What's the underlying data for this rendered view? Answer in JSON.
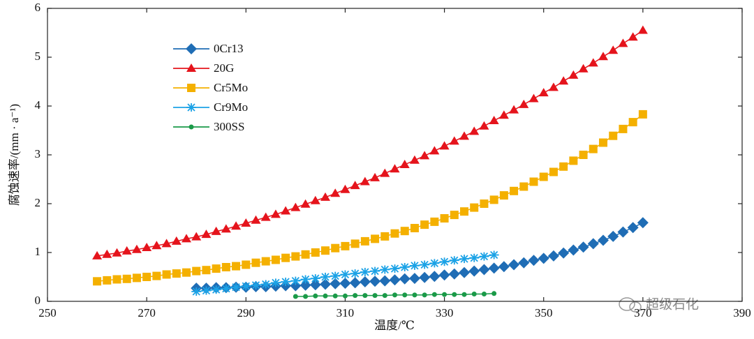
{
  "chart_data": {
    "type": "line",
    "xlabel": "温度/℃",
    "ylabel": "腐蚀速率/(mm · a⁻¹)",
    "watermark": "超级石化",
    "xlim": [
      250,
      390
    ],
    "xticks": [
      250,
      270,
      290,
      310,
      330,
      350,
      370,
      390
    ],
    "ylim": [
      0,
      6
    ],
    "yticks": [
      0,
      1,
      2,
      3,
      4,
      5,
      6
    ],
    "legend": "upper-left",
    "series": [
      {
        "name": "0Cr13",
        "color": "#1f6db5",
        "marker": "diamond",
        "x": [
          280,
          282,
          284,
          286,
          288,
          290,
          292,
          294,
          296,
          298,
          300,
          302,
          304,
          306,
          308,
          310,
          312,
          314,
          316,
          318,
          320,
          322,
          324,
          326,
          328,
          330,
          332,
          334,
          336,
          338,
          340,
          342,
          344,
          346,
          348,
          350,
          352,
          354,
          356,
          358,
          360,
          362,
          364,
          366,
          368,
          370
        ],
        "values": [
          0.27,
          0.27,
          0.28,
          0.28,
          0.29,
          0.29,
          0.3,
          0.3,
          0.31,
          0.32,
          0.32,
          0.33,
          0.34,
          0.35,
          0.36,
          0.37,
          0.38,
          0.4,
          0.41,
          0.42,
          0.44,
          0.46,
          0.47,
          0.49,
          0.51,
          0.54,
          0.56,
          0.59,
          0.62,
          0.65,
          0.68,
          0.71,
          0.75,
          0.79,
          0.84,
          0.88,
          0.93,
          0.99,
          1.05,
          1.11,
          1.18,
          1.25,
          1.33,
          1.42,
          1.51,
          1.61
        ]
      },
      {
        "name": "20G",
        "color": "#e5141c",
        "marker": "triangle",
        "x": [
          260,
          262,
          264,
          266,
          268,
          270,
          272,
          274,
          276,
          278,
          280,
          282,
          284,
          286,
          288,
          290,
          292,
          294,
          296,
          298,
          300,
          302,
          304,
          306,
          308,
          310,
          312,
          314,
          316,
          318,
          320,
          322,
          324,
          326,
          328,
          330,
          332,
          334,
          336,
          338,
          340,
          342,
          344,
          346,
          348,
          350,
          352,
          354,
          356,
          358,
          360,
          362,
          364,
          366,
          368,
          370
        ],
        "values": [
          0.93,
          0.96,
          0.99,
          1.03,
          1.06,
          1.1,
          1.14,
          1.18,
          1.23,
          1.28,
          1.32,
          1.37,
          1.43,
          1.48,
          1.54,
          1.6,
          1.66,
          1.72,
          1.78,
          1.85,
          1.92,
          1.99,
          2.06,
          2.13,
          2.21,
          2.29,
          2.37,
          2.45,
          2.53,
          2.62,
          2.71,
          2.8,
          2.89,
          2.98,
          3.08,
          3.18,
          3.28,
          3.38,
          3.48,
          3.59,
          3.7,
          3.81,
          3.92,
          4.03,
          4.15,
          4.27,
          4.38,
          4.51,
          4.63,
          4.76,
          4.88,
          5.01,
          5.14,
          5.28,
          5.41,
          5.55
        ]
      },
      {
        "name": "Cr5Mo",
        "color": "#f4b000",
        "marker": "square",
        "x": [
          260,
          262,
          264,
          266,
          268,
          270,
          272,
          274,
          276,
          278,
          280,
          282,
          284,
          286,
          288,
          290,
          292,
          294,
          296,
          298,
          300,
          302,
          304,
          306,
          308,
          310,
          312,
          314,
          316,
          318,
          320,
          322,
          324,
          326,
          328,
          330,
          332,
          334,
          336,
          338,
          340,
          342,
          344,
          346,
          348,
          350,
          352,
          354,
          356,
          358,
          360,
          362,
          364,
          366,
          368,
          370
        ],
        "values": [
          0.41,
          0.43,
          0.45,
          0.46,
          0.48,
          0.5,
          0.52,
          0.55,
          0.57,
          0.59,
          0.62,
          0.64,
          0.67,
          0.7,
          0.72,
          0.75,
          0.79,
          0.82,
          0.85,
          0.89,
          0.92,
          0.96,
          1.0,
          1.04,
          1.09,
          1.13,
          1.18,
          1.23,
          1.28,
          1.33,
          1.39,
          1.44,
          1.5,
          1.57,
          1.63,
          1.7,
          1.77,
          1.84,
          1.92,
          2.0,
          2.08,
          2.17,
          2.26,
          2.35,
          2.45,
          2.55,
          2.65,
          2.76,
          2.88,
          3.0,
          3.12,
          3.25,
          3.39,
          3.53,
          3.67,
          3.83
        ]
      },
      {
        "name": "Cr9Mo",
        "color": "#1ba2e6",
        "marker": "asterisk",
        "x": [
          280,
          282,
          284,
          286,
          288,
          290,
          292,
          294,
          296,
          298,
          300,
          302,
          304,
          306,
          308,
          310,
          312,
          314,
          316,
          318,
          320,
          322,
          324,
          326,
          328,
          330,
          332,
          334,
          336,
          338,
          340
        ],
        "values": [
          0.2,
          0.22,
          0.24,
          0.26,
          0.29,
          0.31,
          0.33,
          0.35,
          0.38,
          0.4,
          0.42,
          0.45,
          0.47,
          0.5,
          0.52,
          0.55,
          0.57,
          0.6,
          0.62,
          0.65,
          0.67,
          0.7,
          0.73,
          0.75,
          0.78,
          0.81,
          0.84,
          0.87,
          0.89,
          0.92,
          0.95
        ]
      },
      {
        "name": "300SS",
        "color": "#1a9a48",
        "marker": "circle",
        "x": [
          300,
          302,
          304,
          306,
          308,
          310,
          312,
          314,
          316,
          318,
          320,
          322,
          324,
          326,
          328,
          330,
          332,
          334,
          336,
          338,
          340
        ],
        "values": [
          0.1,
          0.1,
          0.11,
          0.11,
          0.11,
          0.11,
          0.12,
          0.12,
          0.12,
          0.12,
          0.13,
          0.13,
          0.13,
          0.13,
          0.14,
          0.14,
          0.14,
          0.14,
          0.15,
          0.15,
          0.16
        ]
      }
    ]
  }
}
